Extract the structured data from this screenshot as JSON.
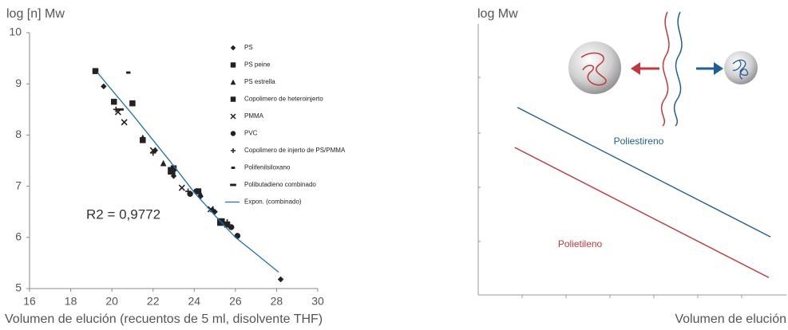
{
  "chart_data": [
    {
      "type": "scatter",
      "y_label": "log [n] Mw",
      "x_label": "Volumen de elución (recuentos de 5 ml, disolvente THF)",
      "annotation": "R2 = 0,9772",
      "xlim": [
        16,
        30
      ],
      "xticks": [
        16,
        18,
        20,
        22,
        24,
        26,
        28,
        30
      ],
      "ylim": [
        5,
        10
      ],
      "yticks": [
        5,
        6,
        7,
        8,
        9,
        10
      ],
      "legend": "right",
      "series": [
        {
          "name": "PS",
          "marker": "diamond",
          "color": "#222",
          "x": [
            19.6,
            22.1,
            23.0,
            24.3,
            25.0,
            28.2
          ],
          "values": [
            8.95,
            7.7,
            7.2,
            6.8,
            6.5,
            5.18
          ]
        },
        {
          "name": "PS peine",
          "marker": "square",
          "color": "#222",
          "x": [
            19.2,
            20.1,
            21.0,
            21.5,
            23.0,
            24.2,
            25.6
          ],
          "values": [
            9.25,
            8.65,
            8.62,
            7.9,
            7.35,
            6.9,
            6.25
          ]
        },
        {
          "name": "PS estrella",
          "marker": "triangle",
          "color": "#222",
          "x": [
            21.5,
            22.5,
            24.3,
            24.9
          ],
          "values": [
            7.95,
            7.45,
            6.85,
            6.55
          ]
        },
        {
          "name": "Copolimero de heteroinjerto",
          "marker": "square",
          "color": "#222",
          "x": [
            22.9,
            25.3
          ],
          "values": [
            7.3,
            6.3
          ]
        },
        {
          "name": "PMMA",
          "marker": "x",
          "color": "#222",
          "x": [
            20.3,
            20.6,
            22.0,
            23.4,
            24.8
          ],
          "values": [
            8.45,
            8.25,
            7.7,
            6.97,
            6.55
          ]
        },
        {
          "name": "PVC",
          "marker": "circle",
          "color": "#222",
          "x": [
            23.8,
            24.1,
            25.8,
            26.1
          ],
          "values": [
            6.85,
            6.9,
            6.2,
            6.03
          ]
        },
        {
          "name": "Copolimero de injerto de PS/PMMA",
          "marker": "plus",
          "color": "#222",
          "x": [
            20.2,
            22.0,
            23.7,
            25.6
          ],
          "values": [
            8.5,
            7.65,
            6.9,
            6.3
          ]
        },
        {
          "name": "Polifenilsiloxano",
          "marker": "short-dash",
          "color": "#222",
          "x": [
            20.8
          ],
          "values": [
            9.22
          ]
        },
        {
          "name": "Polibutadieno combinado",
          "marker": "dash",
          "color": "#222",
          "x": [
            20.4
          ],
          "values": [
            8.5
          ]
        },
        {
          "name": "Expon. (combinado)",
          "marker": "line",
          "color": "#1f6fb5",
          "x": [
            19.3,
            20,
            21,
            22,
            23,
            24,
            25,
            26,
            27,
            28.1
          ],
          "values": [
            9.22,
            8.88,
            8.4,
            7.9,
            7.4,
            6.88,
            6.43,
            6.0,
            5.68,
            5.32
          ]
        }
      ]
    },
    {
      "type": "line",
      "y_label": "log Mw",
      "x_label": "Volumen de elución",
      "xlim": [
        0,
        7
      ],
      "ylim": [
        0,
        5
      ],
      "series": [
        {
          "name": "Poliestireno",
          "color": "#1f5f96",
          "x": [
            0.89,
            6.64
          ],
          "values": [
            3.46,
            1.07
          ]
        },
        {
          "name": "Polietileno",
          "color": "#c0393b",
          "x": [
            0.83,
            6.6
          ],
          "values": [
            2.72,
            0.32
          ]
        }
      ]
    }
  ]
}
